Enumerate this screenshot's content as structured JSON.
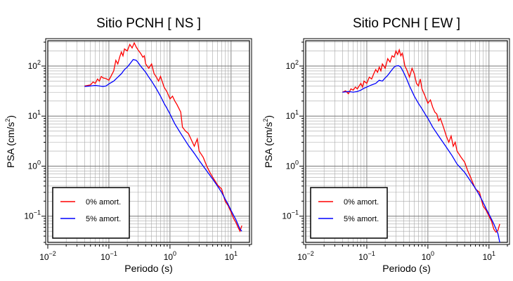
{
  "chart_data": [
    {
      "type": "line",
      "title": "Sitio PCNH [ NS ]",
      "xlabel": "Periodo (s)",
      "ylabel_main": "PSA (cm/s",
      "ylabel_sup": "2",
      "ylabel_end": ")",
      "xscale": "log",
      "yscale": "log",
      "xlim": [
        0.01,
        20
      ],
      "ylim": [
        0.03,
        320
      ],
      "grid": true,
      "legend_position": "bottom-left",
      "series": [
        {
          "name": "0% amort.",
          "color": "#ff0000",
          "points": [
            [
              0.04,
              40
            ],
            [
              0.05,
              42
            ],
            [
              0.055,
              48
            ],
            [
              0.06,
              45
            ],
            [
              0.065,
              55
            ],
            [
              0.07,
              50
            ],
            [
              0.075,
              62
            ],
            [
              0.08,
              58
            ],
            [
              0.09,
              56
            ],
            [
              0.1,
              52
            ],
            [
              0.11,
              65
            ],
            [
              0.12,
              80
            ],
            [
              0.13,
              130
            ],
            [
              0.14,
              110
            ],
            [
              0.15,
              150
            ],
            [
              0.16,
              190
            ],
            [
              0.17,
              160
            ],
            [
              0.18,
              220
            ],
            [
              0.2,
              200
            ],
            [
              0.22,
              270
            ],
            [
              0.24,
              230
            ],
            [
              0.26,
              290
            ],
            [
              0.28,
              240
            ],
            [
              0.3,
              210
            ],
            [
              0.33,
              180
            ],
            [
              0.36,
              150
            ],
            [
              0.38,
              160
            ],
            [
              0.4,
              110
            ],
            [
              0.45,
              90
            ],
            [
              0.5,
              110
            ],
            [
              0.55,
              70
            ],
            [
              0.6,
              60
            ],
            [
              0.65,
              50
            ],
            [
              0.7,
              62
            ],
            [
              0.8,
              38
            ],
            [
              0.9,
              30
            ],
            [
              1.0,
              22
            ],
            [
              1.1,
              25
            ],
            [
              1.2,
              20
            ],
            [
              1.3,
              17
            ],
            [
              1.5,
              12
            ],
            [
              1.6,
              6
            ],
            [
              1.8,
              5
            ],
            [
              2.0,
              4.5
            ],
            [
              2.2,
              3.5
            ],
            [
              2.5,
              2.5
            ],
            [
              2.8,
              3.5
            ],
            [
              3.0,
              2.0
            ],
            [
              3.5,
              1.5
            ],
            [
              4.0,
              1.0
            ],
            [
              4.5,
              0.75
            ],
            [
              5.0,
              0.6
            ],
            [
              5.5,
              0.5
            ],
            [
              6,
              0.42
            ],
            [
              7,
              0.35
            ],
            [
              8,
              0.2
            ],
            [
              9,
              0.16
            ],
            [
              10,
              0.12
            ],
            [
              11,
              0.09
            ],
            [
              12,
              0.075
            ],
            [
              13,
              0.06
            ],
            [
              14,
              0.05
            ],
            [
              15,
              0.065
            ]
          ]
        },
        {
          "name": "5% amort.",
          "color": "#0000ff",
          "points": [
            [
              0.04,
              39
            ],
            [
              0.05,
              40
            ],
            [
              0.06,
              41
            ],
            [
              0.07,
              40
            ],
            [
              0.08,
              39
            ],
            [
              0.09,
              40
            ],
            [
              0.1,
              44
            ],
            [
              0.12,
              50
            ],
            [
              0.14,
              60
            ],
            [
              0.16,
              70
            ],
            [
              0.18,
              85
            ],
            [
              0.2,
              95
            ],
            [
              0.22,
              110
            ],
            [
              0.25,
              135
            ],
            [
              0.28,
              130
            ],
            [
              0.3,
              118
            ],
            [
              0.33,
              100
            ],
            [
              0.36,
              88
            ],
            [
              0.4,
              75
            ],
            [
              0.45,
              60
            ],
            [
              0.5,
              50
            ],
            [
              0.6,
              35
            ],
            [
              0.7,
              25
            ],
            [
              0.8,
              18
            ],
            [
              0.9,
              14
            ],
            [
              1.0,
              11
            ],
            [
              1.2,
              7
            ],
            [
              1.5,
              4.5
            ],
            [
              2.0,
              2.6
            ],
            [
              2.5,
              1.8
            ],
            [
              3.0,
              1.3
            ],
            [
              4.0,
              0.8
            ],
            [
              5.0,
              0.55
            ],
            [
              6,
              0.4
            ],
            [
              7,
              0.3
            ],
            [
              8,
              0.22
            ],
            [
              9,
              0.17
            ],
            [
              10,
              0.13
            ],
            [
              12,
              0.085
            ],
            [
              14,
              0.055
            ],
            [
              15,
              0.05
            ]
          ]
        }
      ]
    },
    {
      "type": "line",
      "title": "Sitio PCNH [ EW ]",
      "xlabel": "Periodo (s)",
      "ylabel_main": "PSA (cm/s",
      "ylabel_sup": "2",
      "ylabel_end": ")",
      "xscale": "log",
      "yscale": "log",
      "xlim": [
        0.01,
        20
      ],
      "ylim": [
        0.03,
        320
      ],
      "grid": true,
      "legend_position": "bottom-left",
      "series": [
        {
          "name": "0% amort.",
          "color": "#ff0000",
          "points": [
            [
              0.04,
              30
            ],
            [
              0.045,
              32
            ],
            [
              0.05,
              28
            ],
            [
              0.055,
              35
            ],
            [
              0.06,
              33
            ],
            [
              0.065,
              38
            ],
            [
              0.07,
              35
            ],
            [
              0.075,
              40
            ],
            [
              0.08,
              45
            ],
            [
              0.085,
              38
            ],
            [
              0.09,
              50
            ],
            [
              0.1,
              45
            ],
            [
              0.11,
              60
            ],
            [
              0.12,
              55
            ],
            [
              0.13,
              70
            ],
            [
              0.14,
              85
            ],
            [
              0.15,
              75
            ],
            [
              0.16,
              95
            ],
            [
              0.17,
              80
            ],
            [
              0.18,
              110
            ],
            [
              0.2,
              90
            ],
            [
              0.22,
              140
            ],
            [
              0.24,
              120
            ],
            [
              0.26,
              160
            ],
            [
              0.28,
              150
            ],
            [
              0.3,
              200
            ],
            [
              0.32,
              170
            ],
            [
              0.34,
              210
            ],
            [
              0.36,
              160
            ],
            [
              0.38,
              180
            ],
            [
              0.4,
              140
            ],
            [
              0.42,
              100
            ],
            [
              0.45,
              85
            ],
            [
              0.5,
              60
            ],
            [
              0.55,
              90
            ],
            [
              0.6,
              70
            ],
            [
              0.65,
              45
            ],
            [
              0.7,
              40
            ],
            [
              0.75,
              55
            ],
            [
              0.8,
              35
            ],
            [
              0.9,
              25
            ],
            [
              1.0,
              18
            ],
            [
              1.1,
              21
            ],
            [
              1.2,
              15
            ],
            [
              1.3,
              12
            ],
            [
              1.4,
              11
            ],
            [
              1.5,
              8
            ],
            [
              1.6,
              9
            ],
            [
              1.8,
              6
            ],
            [
              2.0,
              4
            ],
            [
              2.2,
              3
            ],
            [
              2.4,
              4
            ],
            [
              2.6,
              2.5
            ],
            [
              2.8,
              3
            ],
            [
              3.0,
              2
            ],
            [
              3.5,
              1.5
            ],
            [
              4.0,
              1.2
            ],
            [
              4.5,
              0.8
            ],
            [
              5.0,
              0.6
            ],
            [
              5.5,
              0.45
            ],
            [
              6,
              0.35
            ],
            [
              7,
              0.3
            ],
            [
              8,
              0.16
            ],
            [
              9,
              0.13
            ],
            [
              10,
              0.1
            ],
            [
              11,
              0.08
            ],
            [
              12,
              0.055
            ],
            [
              13,
              0.048
            ],
            [
              14,
              0.052
            ],
            [
              15,
              0.07
            ]
          ]
        },
        {
          "name": "5% amort.",
          "color": "#0000ff",
          "points": [
            [
              0.04,
              30
            ],
            [
              0.05,
              31
            ],
            [
              0.06,
              30
            ],
            [
              0.07,
              31
            ],
            [
              0.08,
              33
            ],
            [
              0.09,
              36
            ],
            [
              0.1,
              38
            ],
            [
              0.12,
              42
            ],
            [
              0.14,
              45
            ],
            [
              0.16,
              52
            ],
            [
              0.18,
              50
            ],
            [
              0.2,
              58
            ],
            [
              0.22,
              65
            ],
            [
              0.25,
              80
            ],
            [
              0.28,
              95
            ],
            [
              0.3,
              100
            ],
            [
              0.33,
              102
            ],
            [
              0.36,
              95
            ],
            [
              0.4,
              75
            ],
            [
              0.45,
              55
            ],
            [
              0.5,
              40
            ],
            [
              0.6,
              25
            ],
            [
              0.7,
              18
            ],
            [
              0.8,
              14
            ],
            [
              0.9,
              11
            ],
            [
              1.0,
              9
            ],
            [
              1.2,
              6
            ],
            [
              1.5,
              4
            ],
            [
              2.0,
              2.4
            ],
            [
              2.5,
              1.6
            ],
            [
              3.0,
              1.1
            ],
            [
              4.0,
              0.75
            ],
            [
              5.0,
              0.5
            ],
            [
              6,
              0.36
            ],
            [
              7,
              0.26
            ],
            [
              8,
              0.19
            ],
            [
              9,
              0.14
            ],
            [
              10,
              0.11
            ],
            [
              12,
              0.07
            ],
            [
              14,
              0.045
            ],
            [
              15,
              0.03
            ]
          ]
        }
      ]
    }
  ],
  "tick_labels": {
    "x": [
      {
        "base": "10",
        "exp": "−2"
      },
      {
        "base": "10",
        "exp": "−1"
      },
      {
        "base": "10",
        "exp": "0"
      },
      {
        "base": "10",
        "exp": "1"
      }
    ],
    "y": [
      {
        "base": "10",
        "exp": "−1"
      },
      {
        "base": "10",
        "exp": "0"
      },
      {
        "base": "10",
        "exp": "1"
      },
      {
        "base": "10",
        "exp": "2"
      }
    ]
  }
}
